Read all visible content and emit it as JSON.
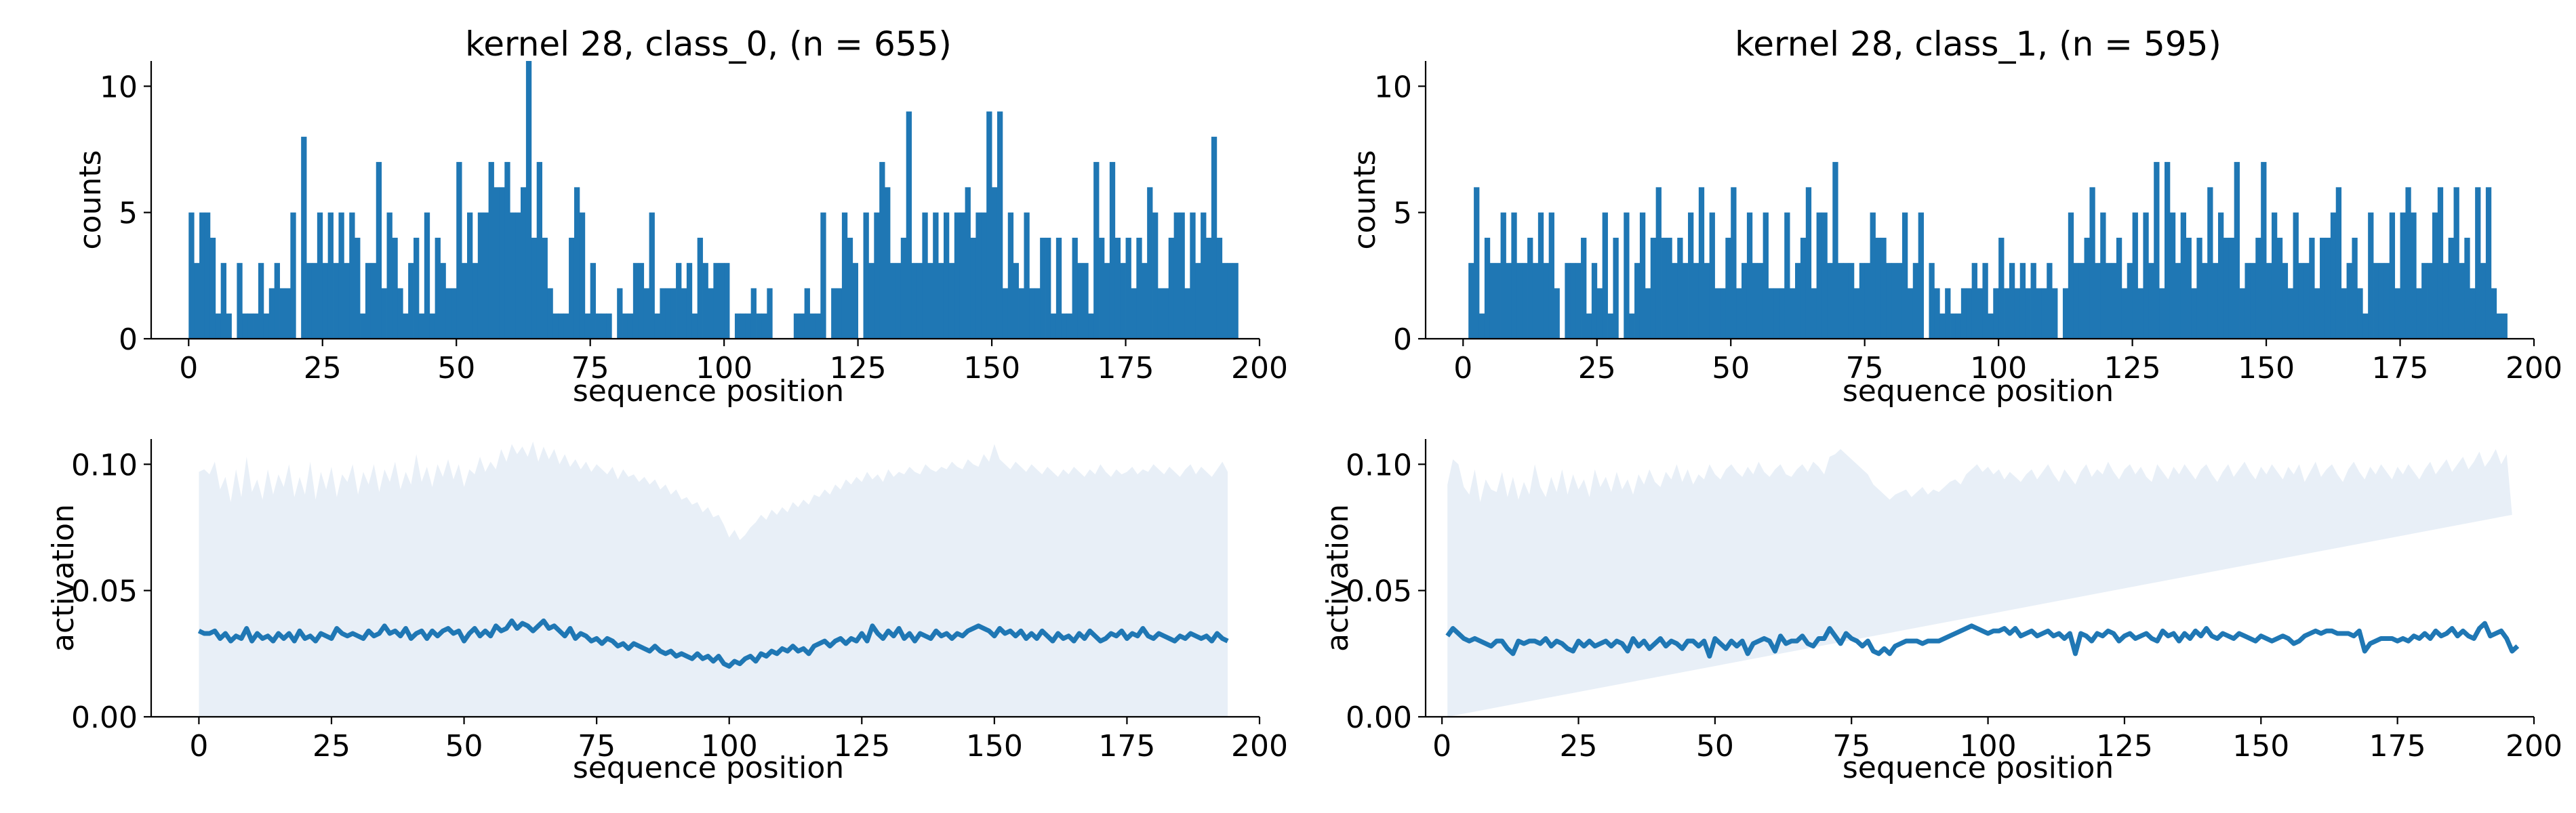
{
  "chart_data": [
    {
      "type": "bar",
      "title": "kernel 28, class_0, (n = 655)",
      "xlabel": "sequence position",
      "ylabel": "counts",
      "xlim": [
        -7,
        200
      ],
      "ylim": [
        0,
        11
      ],
      "xticks": [
        "0",
        "25",
        "50",
        "75",
        "100",
        "125",
        "150",
        "175",
        "200"
      ],
      "yticks": [
        "0",
        "5",
        "10"
      ],
      "color": "#1f77b4",
      "x_start": 0,
      "values": [
        5,
        3,
        5,
        5,
        4,
        1,
        3,
        1,
        0,
        3,
        1,
        1,
        1,
        3,
        1,
        2,
        3,
        2,
        2,
        5,
        0,
        8,
        3,
        3,
        5,
        3,
        5,
        3,
        5,
        3,
        5,
        4,
        1,
        3,
        3,
        7,
        2,
        5,
        4,
        2,
        1,
        3,
        4,
        1,
        5,
        1,
        4,
        3,
        2,
        2,
        7,
        3,
        5,
        3,
        5,
        5,
        7,
        6,
        6,
        7,
        5,
        5,
        6,
        11,
        4,
        7,
        4,
        2,
        1,
        1,
        1,
        4,
        6,
        5,
        1,
        3,
        1,
        1,
        1,
        0,
        2,
        1,
        1,
        3,
        3,
        2,
        5,
        1,
        2,
        2,
        2,
        3,
        2,
        3,
        1,
        4,
        3,
        2,
        3,
        3,
        3,
        0,
        1,
        1,
        1,
        2,
        1,
        1,
        2,
        0,
        0,
        0,
        0,
        1,
        1,
        2,
        1,
        1,
        5,
        0,
        2,
        2,
        5,
        4,
        3,
        0,
        5,
        3,
        5,
        7,
        6,
        3,
        3,
        4,
        9,
        3,
        3,
        5,
        3,
        5,
        3,
        5,
        3,
        5,
        5,
        6,
        4,
        5,
        5,
        9,
        6,
        9,
        2,
        5,
        3,
        2,
        5,
        2,
        2,
        4,
        4,
        1,
        4,
        1,
        1,
        4,
        3,
        3,
        1,
        7,
        4,
        3,
        7,
        4,
        3,
        4,
        2,
        4,
        3,
        6,
        5,
        2,
        2,
        4,
        5,
        5,
        2,
        5,
        3,
        5,
        4,
        8,
        4,
        3,
        3,
        3
      ]
    },
    {
      "type": "bar",
      "title": "kernel 28, class_1, (n = 595)",
      "xlabel": "sequence position",
      "ylabel": "counts",
      "xlim": [
        -7,
        200
      ],
      "ylim": [
        0,
        11
      ],
      "xticks": [
        "0",
        "25",
        "50",
        "75",
        "100",
        "125",
        "150",
        "175",
        "200"
      ],
      "yticks": [
        "0",
        "5",
        "10"
      ],
      "color": "#1f77b4",
      "x_start": 0,
      "values": [
        0,
        3,
        6,
        1,
        4,
        3,
        3,
        5,
        3,
        5,
        3,
        3,
        4,
        3,
        5,
        3,
        5,
        2,
        0,
        3,
        3,
        3,
        4,
        1,
        3,
        2,
        5,
        1,
        4,
        0,
        5,
        1,
        3,
        5,
        2,
        4,
        6,
        4,
        4,
        3,
        4,
        3,
        5,
        3,
        6,
        3,
        5,
        2,
        2,
        4,
        6,
        2,
        3,
        5,
        3,
        3,
        5,
        2,
        2,
        2,
        5,
        2,
        3,
        4,
        6,
        2,
        5,
        5,
        3,
        7,
        3,
        3,
        3,
        2,
        3,
        3,
        5,
        4,
        4,
        3,
        3,
        3,
        5,
        2,
        3,
        5,
        0,
        3,
        2,
        1,
        2,
        1,
        1,
        2,
        2,
        3,
        2,
        3,
        1,
        2,
        4,
        2,
        3,
        2,
        3,
        2,
        3,
        2,
        2,
        3,
        2,
        0,
        2,
        5,
        3,
        3,
        4,
        6,
        3,
        5,
        3,
        3,
        4,
        2,
        3,
        5,
        2,
        5,
        3,
        7,
        2,
        7,
        5,
        3,
        5,
        4,
        2,
        4,
        3,
        6,
        3,
        5,
        4,
        4,
        7,
        2,
        3,
        3,
        4,
        7,
        3,
        5,
        4,
        3,
        2,
        5,
        3,
        3,
        4,
        2,
        4,
        4,
        5,
        6,
        2,
        3,
        4,
        2,
        1,
        5,
        3,
        3,
        3,
        5,
        2,
        5,
        6,
        5,
        2,
        3,
        3,
        5,
        6,
        3,
        4,
        6,
        3,
        4,
        2,
        6,
        3,
        6,
        2,
        1,
        1
      ]
    },
    {
      "type": "area",
      "xlabel": "sequence position",
      "ylabel": "activation",
      "xlim": [
        -9,
        200
      ],
      "ylim": [
        0,
        0.11
      ],
      "xticks": [
        "0",
        "25",
        "50",
        "75",
        "100",
        "125",
        "150",
        "175",
        "200"
      ],
      "yticks": [
        "0.00",
        "0.05",
        "0.10"
      ],
      "line_color": "#1f77b4",
      "band_color": "#e8eff7",
      "x_start": 0,
      "band_lower": 0,
      "mean": [
        0.034,
        0.033,
        0.033,
        0.034,
        0.031,
        0.033,
        0.03,
        0.032,
        0.031,
        0.035,
        0.03,
        0.033,
        0.031,
        0.032,
        0.03,
        0.033,
        0.031,
        0.033,
        0.03,
        0.034,
        0.031,
        0.032,
        0.03,
        0.033,
        0.032,
        0.031,
        0.035,
        0.033,
        0.032,
        0.033,
        0.032,
        0.031,
        0.034,
        0.032,
        0.033,
        0.036,
        0.033,
        0.034,
        0.032,
        0.035,
        0.031,
        0.033,
        0.034,
        0.031,
        0.034,
        0.032,
        0.034,
        0.035,
        0.033,
        0.034,
        0.03,
        0.033,
        0.035,
        0.032,
        0.034,
        0.032,
        0.036,
        0.034,
        0.035,
        0.038,
        0.035,
        0.037,
        0.036,
        0.034,
        0.036,
        0.038,
        0.035,
        0.036,
        0.034,
        0.032,
        0.035,
        0.031,
        0.033,
        0.032,
        0.03,
        0.031,
        0.029,
        0.031,
        0.03,
        0.028,
        0.029,
        0.027,
        0.029,
        0.028,
        0.027,
        0.026,
        0.028,
        0.026,
        0.025,
        0.026,
        0.024,
        0.025,
        0.024,
        0.023,
        0.025,
        0.023,
        0.024,
        0.022,
        0.024,
        0.021,
        0.02,
        0.022,
        0.021,
        0.023,
        0.024,
        0.022,
        0.025,
        0.024,
        0.026,
        0.025,
        0.027,
        0.026,
        0.028,
        0.026,
        0.027,
        0.025,
        0.028,
        0.029,
        0.03,
        0.028,
        0.03,
        0.031,
        0.029,
        0.031,
        0.03,
        0.033,
        0.03,
        0.036,
        0.033,
        0.031,
        0.034,
        0.032,
        0.035,
        0.031,
        0.033,
        0.03,
        0.033,
        0.032,
        0.031,
        0.034,
        0.032,
        0.033,
        0.031,
        0.033,
        0.032,
        0.034,
        0.035,
        0.036,
        0.035,
        0.034,
        0.032,
        0.035,
        0.033,
        0.034,
        0.032,
        0.034,
        0.031,
        0.033,
        0.031,
        0.034,
        0.032,
        0.03,
        0.033,
        0.031,
        0.032,
        0.03,
        0.033,
        0.031,
        0.034,
        0.032,
        0.03,
        0.031,
        0.033,
        0.032,
        0.034,
        0.031,
        0.033,
        0.032,
        0.035,
        0.032,
        0.031,
        0.033,
        0.032,
        0.031,
        0.03,
        0.032,
        0.031,
        0.033,
        0.032,
        0.031,
        0.032,
        0.03,
        0.033,
        0.031,
        0.03
      ],
      "band_upper": [
        0.097,
        0.098,
        0.096,
        0.101,
        0.09,
        0.095,
        0.085,
        0.098,
        0.087,
        0.103,
        0.089,
        0.094,
        0.086,
        0.098,
        0.088,
        0.096,
        0.091,
        0.1,
        0.087,
        0.095,
        0.088,
        0.101,
        0.086,
        0.097,
        0.09,
        0.099,
        0.087,
        0.096,
        0.093,
        0.1,
        0.088,
        0.097,
        0.092,
        0.1,
        0.089,
        0.098,
        0.093,
        0.101,
        0.09,
        0.097,
        0.092,
        0.104,
        0.093,
        0.099,
        0.091,
        0.1,
        0.095,
        0.102,
        0.094,
        0.1,
        0.091,
        0.098,
        0.096,
        0.103,
        0.097,
        0.101,
        0.098,
        0.106,
        0.101,
        0.108,
        0.104,
        0.107,
        0.103,
        0.109,
        0.101,
        0.107,
        0.102,
        0.106,
        0.1,
        0.104,
        0.099,
        0.102,
        0.098,
        0.101,
        0.097,
        0.1,
        0.098,
        0.096,
        0.099,
        0.094,
        0.098,
        0.095,
        0.096,
        0.093,
        0.095,
        0.092,
        0.094,
        0.09,
        0.092,
        0.088,
        0.09,
        0.086,
        0.087,
        0.084,
        0.085,
        0.081,
        0.083,
        0.079,
        0.08,
        0.076,
        0.071,
        0.074,
        0.07,
        0.072,
        0.075,
        0.077,
        0.08,
        0.078,
        0.082,
        0.08,
        0.083,
        0.081,
        0.085,
        0.083,
        0.086,
        0.084,
        0.088,
        0.087,
        0.09,
        0.088,
        0.092,
        0.09,
        0.094,
        0.092,
        0.095,
        0.093,
        0.097,
        0.094,
        0.096,
        0.093,
        0.098,
        0.095,
        0.097,
        0.096,
        0.099,
        0.097,
        0.096,
        0.1,
        0.098,
        0.097,
        0.099,
        0.098,
        0.101,
        0.099,
        0.098,
        0.102,
        0.1,
        0.099,
        0.104,
        0.101,
        0.108,
        0.102,
        0.1,
        0.098,
        0.101,
        0.099,
        0.097,
        0.1,
        0.098,
        0.096,
        0.099,
        0.097,
        0.095,
        0.098,
        0.096,
        0.099,
        0.097,
        0.095,
        0.098,
        0.096,
        0.1,
        0.097,
        0.095,
        0.098,
        0.096,
        0.097,
        0.099,
        0.096,
        0.098,
        0.097,
        0.1,
        0.098,
        0.096,
        0.099,
        0.097,
        0.095,
        0.098,
        0.1,
        0.096,
        0.099,
        0.097,
        0.095,
        0.098,
        0.101,
        0.097,
        0.099,
        0.093
      ]
    },
    {
      "type": "area",
      "xlabel": "sequence position",
      "ylabel": "activation",
      "xlim": [
        -3,
        200
      ],
      "ylim": [
        0,
        0.11
      ],
      "xticks": [
        "0",
        "25",
        "50",
        "75",
        "100",
        "125",
        "150",
        "175",
        "200"
      ],
      "yticks": [
        "0.00",
        "0.05",
        "0.10"
      ],
      "line_color": "#1f77b4",
      "band_color": "#e8eff7",
      "x_start": 1,
      "band_lower": 0,
      "mean": [
        0.032,
        0.035,
        0.033,
        0.031,
        0.03,
        0.031,
        0.03,
        0.029,
        0.028,
        0.03,
        0.03,
        0.027,
        0.025,
        0.03,
        0.029,
        0.03,
        0.03,
        0.029,
        0.031,
        0.028,
        0.03,
        0.029,
        0.027,
        0.026,
        0.03,
        0.028,
        0.03,
        0.028,
        0.029,
        0.03,
        0.028,
        0.03,
        0.029,
        0.026,
        0.031,
        0.028,
        0.03,
        0.027,
        0.029,
        0.031,
        0.028,
        0.03,
        0.029,
        0.027,
        0.03,
        0.03,
        0.028,
        0.03,
        0.024,
        0.031,
        0.029,
        0.027,
        0.03,
        0.028,
        0.03,
        0.025,
        0.029,
        0.03,
        0.031,
        0.03,
        0.026,
        0.032,
        0.029,
        0.03,
        0.03,
        0.032,
        0.029,
        0.028,
        0.031,
        0.031,
        0.035,
        0.032,
        0.029,
        0.033,
        0.031,
        0.03,
        0.028,
        0.03,
        0.026,
        0.025,
        0.027,
        0.025,
        0.028,
        0.029,
        0.03,
        0.03,
        0.03,
        0.029,
        0.03,
        0.03,
        0.03,
        0.031,
        0.032,
        0.033,
        0.034,
        0.035,
        0.036,
        0.035,
        0.034,
        0.033,
        0.034,
        0.034,
        0.035,
        0.033,
        0.035,
        0.032,
        0.033,
        0.034,
        0.032,
        0.033,
        0.034,
        0.032,
        0.033,
        0.031,
        0.033,
        0.025,
        0.033,
        0.032,
        0.03,
        0.033,
        0.032,
        0.034,
        0.033,
        0.03,
        0.032,
        0.033,
        0.031,
        0.032,
        0.033,
        0.031,
        0.03,
        0.034,
        0.032,
        0.033,
        0.03,
        0.033,
        0.031,
        0.034,
        0.032,
        0.035,
        0.032,
        0.031,
        0.033,
        0.032,
        0.031,
        0.033,
        0.032,
        0.031,
        0.03,
        0.032,
        0.031,
        0.03,
        0.031,
        0.032,
        0.031,
        0.029,
        0.03,
        0.032,
        0.033,
        0.034,
        0.033,
        0.034,
        0.034,
        0.033,
        0.033,
        0.033,
        0.032,
        0.034,
        0.026,
        0.029,
        0.03,
        0.031,
        0.031,
        0.031,
        0.03,
        0.031,
        0.03,
        0.032,
        0.031,
        0.033,
        0.031,
        0.034,
        0.032,
        0.033,
        0.035,
        0.032,
        0.034,
        0.032,
        0.031,
        0.035,
        0.037,
        0.032,
        0.033,
        0.034,
        0.031,
        0.026,
        0.028
      ],
      "band_upper": [
        0.092,
        0.102,
        0.1,
        0.091,
        0.088,
        0.098,
        0.085,
        0.094,
        0.09,
        0.089,
        0.097,
        0.087,
        0.095,
        0.086,
        0.093,
        0.088,
        0.1,
        0.091,
        0.087,
        0.095,
        0.089,
        0.098,
        0.088,
        0.096,
        0.09,
        0.094,
        0.087,
        0.098,
        0.091,
        0.095,
        0.089,
        0.097,
        0.09,
        0.094,
        0.088,
        0.096,
        0.092,
        0.098,
        0.093,
        0.091,
        0.097,
        0.094,
        0.1,
        0.093,
        0.098,
        0.092,
        0.096,
        0.094,
        0.1,
        0.096,
        0.094,
        0.098,
        0.1,
        0.097,
        0.095,
        0.099,
        0.096,
        0.101,
        0.097,
        0.095,
        0.098,
        0.1,
        0.096,
        0.095,
        0.098,
        0.1,
        0.097,
        0.101,
        0.099,
        0.096,
        0.103,
        0.104,
        0.106,
        0.104,
        0.102,
        0.1,
        0.098,
        0.096,
        0.092,
        0.09,
        0.088,
        0.086,
        0.088,
        0.089,
        0.09,
        0.087,
        0.089,
        0.091,
        0.088,
        0.09,
        0.089,
        0.091,
        0.093,
        0.094,
        0.092,
        0.096,
        0.098,
        0.1,
        0.097,
        0.099,
        0.096,
        0.098,
        0.094,
        0.097,
        0.095,
        0.093,
        0.096,
        0.098,
        0.094,
        0.097,
        0.1,
        0.096,
        0.093,
        0.098,
        0.095,
        0.092,
        0.097,
        0.1,
        0.095,
        0.098,
        0.096,
        0.101,
        0.097,
        0.094,
        0.098,
        0.1,
        0.096,
        0.099,
        0.095,
        0.093,
        0.1,
        0.097,
        0.094,
        0.099,
        0.096,
        0.1,
        0.097,
        0.094,
        0.098,
        0.1,
        0.096,
        0.093,
        0.097,
        0.1,
        0.095,
        0.098,
        0.101,
        0.097,
        0.094,
        0.099,
        0.096,
        0.1,
        0.097,
        0.094,
        0.099,
        0.096,
        0.1,
        0.093,
        0.097,
        0.101,
        0.095,
        0.098,
        0.1,
        0.096,
        0.093,
        0.098,
        0.101,
        0.097,
        0.094,
        0.099,
        0.096,
        0.1,
        0.097,
        0.094,
        0.099,
        0.096,
        0.1,
        0.097,
        0.094,
        0.098,
        0.101,
        0.096,
        0.099,
        0.102,
        0.097,
        0.1,
        0.103,
        0.098,
        0.101,
        0.105,
        0.099,
        0.102,
        0.106,
        0.1,
        0.104,
        0.08
      ]
    }
  ]
}
